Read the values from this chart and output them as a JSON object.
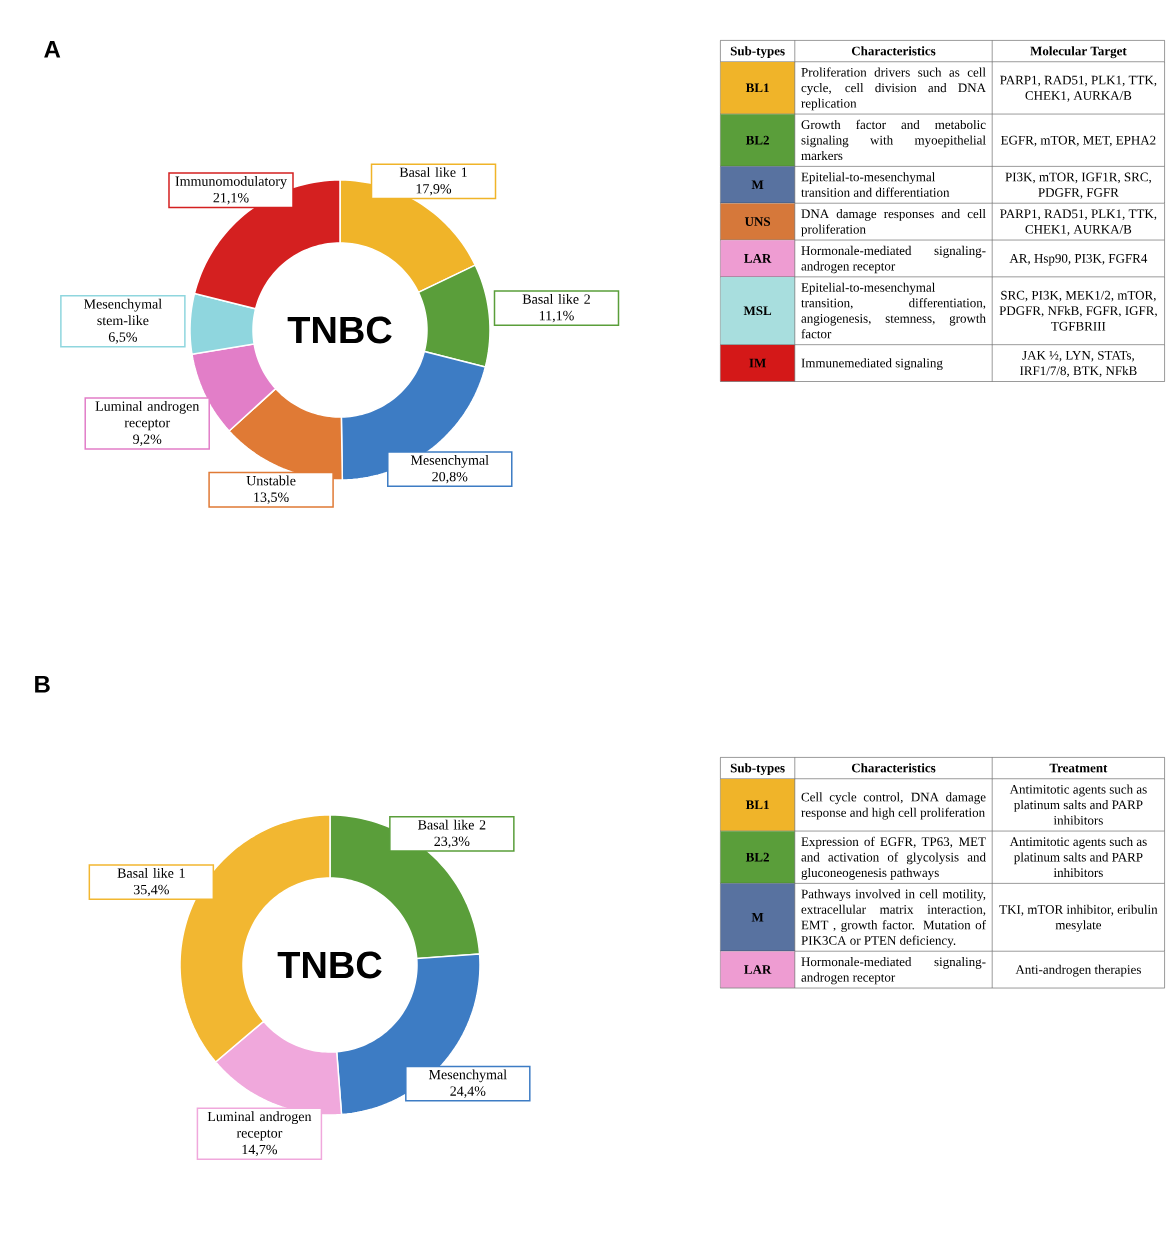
{
  "chart_data": [
    {
      "type": "donut",
      "title": "A",
      "categories": [
        "Basal like 1",
        "Basal like 2",
        "Mesenchymal",
        "Unstable",
        "Luminal androgen receptor",
        "Mesenchymal stem-like",
        "Immunomodulatory"
      ],
      "values": [
        17.9,
        11.1,
        20.8,
        13.5,
        9.2,
        6.5,
        21.1
      ],
      "value_labels": [
        "17,9%",
        "11,1%",
        "20,8%",
        "13,5%",
        "9,2%",
        "6,5%",
        "21,1%"
      ],
      "colors": [
        "#f0b429",
        "#5a9e3a",
        "#3d7cc4",
        "#e07a35",
        "#e27ec8",
        "#8fd6de",
        "#d42020"
      ],
      "annotations": [
        "TNBC"
      ]
    },
    {
      "type": "other",
      "colors": [
        "#f0b429",
        "#5a9e3a",
        "#5872a0",
        "#d6783a",
        "#ee9cd2",
        "#a8dede",
        "#d41818"
      ],
      "annotations": [
        "Sub-types",
        "Characteristics",
        "Molecular Target",
        "BL1",
        "Proliferation drivers such as cell cycle, cell division and DNA replication",
        "PARP1, RAD51, PLK1, TTK, CHEK1, AURKA/B",
        "BL2",
        "Growth factor and metabolic signaling with myoepithelial markers",
        "EGFR, mTOR, MET, EPHA2",
        "M",
        "Epitelial-to-mesenchymal transition and differentiation",
        "PI3K, mTOR, IGF1R, SRC, PDGFR, FGFR",
        "UNS",
        "DNA damage responses and cell proliferation",
        "PARP1, RAD51, PLK1, TTK, CHEK1, AURKA/B",
        "LAR",
        "Hormonale-mediated signaling-androgen receptor",
        "AR, Hsp90, PI3K, FGFR4",
        "MSL",
        "Epitelial-to-mesenchymal transition, differentiation, angiogenesis, stemness, growth factor",
        "SRC, PI3K, MEK1/2, mTOR, PDGFR, NFkB, FGFR, IGFR, TGFBRIII",
        "IM",
        "Immunemediated signaling",
        "JAK ½, LYN, STATs, IRF1/7/8, BTK, NFkB"
      ]
    },
    {
      "type": "donut",
      "title": "B",
      "categories": [
        "Basal like 2",
        "Mesenchymal",
        "Luminal androgen receptor",
        "Basal like 1"
      ],
      "values": [
        23.3,
        24.4,
        14.7,
        35.4
      ],
      "value_labels": [
        "23,3%",
        "24,4%",
        "14,7%",
        "35,4%"
      ],
      "colors": [
        "#5a9e3a",
        "#3d7cc4",
        "#f0a8dc",
        "#f2b731"
      ],
      "annotations": [
        "TNBC"
      ]
    },
    {
      "type": "other",
      "colors": [
        "#f0b429",
        "#5a9e3a",
        "#5872a0",
        "#ee9cd2"
      ],
      "annotations": [
        "Sub-types",
        "Characteristics",
        "Treatment",
        "BL1",
        "Cell cycle control, DNA damage response and high cell proliferation",
        "Antimitotic agents such as platinum salts and PARP inhibitors",
        "BL2",
        "Expression of EGFR, TP63, MET and activation of glycolysis and gluconeogenesis pathways",
        "Antimitotic agents such as platinum salts and PARP inhibitors",
        "M",
        "Pathways involved in cell motility, extracellular matrix interaction, EMT , growth factor. Mutation of PIK3CA or PTEN deficiency.",
        "TKI, mTOR inhibitor, eribulin mesylate",
        "LAR",
        "Hormonale-mediated signaling-androgen receptor",
        "Anti-androgen therapies"
      ]
    }
  ]
}
